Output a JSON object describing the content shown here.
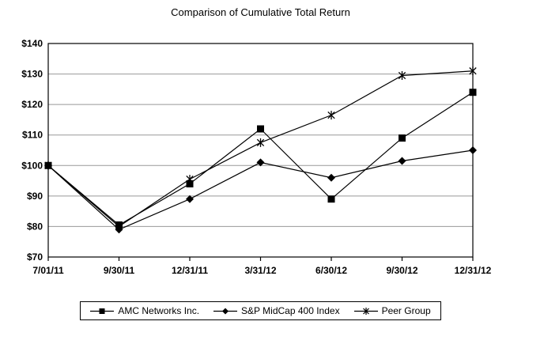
{
  "chart_data": {
    "type": "line",
    "title": "Comparison of Cumulative Total Return",
    "categories": [
      "7/01/11",
      "9/30/11",
      "12/31/11",
      "3/31/12",
      "6/30/12",
      "9/30/12",
      "12/31/12"
    ],
    "series": [
      {
        "name": "AMC Networks Inc.",
        "marker": "square",
        "values": [
          100,
          80.5,
          94,
          112,
          89,
          109,
          124
        ]
      },
      {
        "name": "S&P MidCap 400 Index",
        "marker": "diamond",
        "values": [
          100,
          79,
          89,
          101,
          96,
          101.5,
          105
        ]
      },
      {
        "name": "Peer Group",
        "marker": "asterisk",
        "values": [
          100,
          80,
          95.5,
          107.5,
          116.5,
          129.5,
          131
        ]
      }
    ],
    "xlabel": "",
    "ylabel": "",
    "ylim": [
      70,
      140
    ],
    "y_ticks": [
      70,
      80,
      90,
      100,
      110,
      120,
      130,
      140
    ],
    "y_tick_labels": [
      "$70",
      "$80",
      "$90",
      "$100",
      "$110",
      "$120",
      "$130",
      "$140"
    ],
    "grid": true,
    "legend_position": "bottom",
    "colors": {
      "line": "#000000",
      "marker": "#000000",
      "grid": "#999999",
      "axis": "#000000",
      "text": "#000000",
      "background": "#ffffff"
    }
  }
}
